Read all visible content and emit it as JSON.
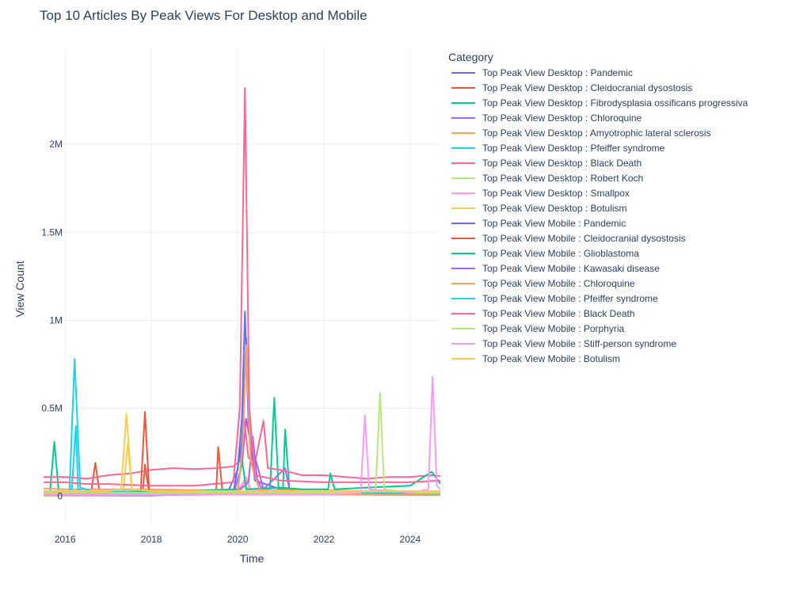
{
  "chart_data": {
    "type": "line",
    "title": "Top 10 Articles By Peak Views For Desktop and Mobile",
    "xlabel": "Time",
    "ylabel": "View Count",
    "xlim": [
      2015.5,
      2024.7
    ],
    "ylim": [
      -150000,
      2550000
    ],
    "x_ticks": [
      2016,
      2018,
      2020,
      2022,
      2024
    ],
    "x_tick_labels": [
      "2016",
      "2018",
      "2020",
      "2022",
      "2024"
    ],
    "y_ticks": [
      0,
      500000,
      1000000,
      1500000,
      2000000
    ],
    "y_tick_labels": [
      "0",
      "0.5M",
      "1M",
      "1.5M",
      "2M"
    ],
    "grid": true,
    "legend_title": "Category",
    "legend_position": "right",
    "series": [
      {
        "name": "Top Peak View Desktop : Pandemic",
        "color": "#636efa",
        "points": [
          [
            2015.5,
            15000
          ],
          [
            2017,
            20000
          ],
          [
            2019,
            18000
          ],
          [
            2019.8,
            40000
          ],
          [
            2020.0,
            150000
          ],
          [
            2020.1,
            450000
          ],
          [
            2020.17,
            1050000
          ],
          [
            2020.25,
            420000
          ],
          [
            2020.4,
            90000
          ],
          [
            2021,
            40000
          ],
          [
            2022,
            20000
          ],
          [
            2023,
            15000
          ],
          [
            2024.7,
            12000
          ]
        ]
      },
      {
        "name": "Top Peak View Desktop : Cleidocranial dysostosis",
        "color": "#EF553B",
        "points": [
          [
            2015.5,
            10000
          ],
          [
            2016.6,
            15000
          ],
          [
            2016.7,
            190000
          ],
          [
            2016.8,
            20000
          ],
          [
            2017.8,
            15000
          ],
          [
            2017.85,
            180000
          ],
          [
            2017.95,
            15000
          ],
          [
            2019.5,
            12000
          ],
          [
            2019.55,
            280000
          ],
          [
            2019.65,
            20000
          ],
          [
            2021,
            10000
          ],
          [
            2023,
            10000
          ],
          [
            2024.7,
            8000
          ]
        ]
      },
      {
        "name": "Top Peak View Desktop : Fibrodysplasia ossificans progressiva",
        "color": "#00cc96",
        "points": [
          [
            2015.5,
            20000
          ],
          [
            2015.65,
            30000
          ],
          [
            2015.75,
            310000
          ],
          [
            2015.85,
            30000
          ],
          [
            2016.5,
            20000
          ],
          [
            2018,
            15000
          ],
          [
            2020,
            20000
          ],
          [
            2020.75,
            30000
          ],
          [
            2020.85,
            560000
          ],
          [
            2020.95,
            40000
          ],
          [
            2021.05,
            30000
          ],
          [
            2021.1,
            380000
          ],
          [
            2021.2,
            40000
          ],
          [
            2022,
            30000
          ],
          [
            2023,
            25000
          ],
          [
            2024.7,
            20000
          ]
        ]
      },
      {
        "name": "Top Peak View Desktop : Chloroquine",
        "color": "#ab63fa",
        "points": [
          [
            2015.5,
            8000
          ],
          [
            2019.9,
            10000
          ],
          [
            2020.1,
            180000
          ],
          [
            2020.2,
            440000
          ],
          [
            2020.3,
            300000
          ],
          [
            2020.45,
            180000
          ],
          [
            2020.6,
            40000
          ],
          [
            2021.1,
            160000
          ],
          [
            2021.2,
            40000
          ],
          [
            2022,
            15000
          ],
          [
            2024.7,
            10000
          ]
        ]
      },
      {
        "name": "Top Peak View Desktop : Amyotrophic lateral sclerosis",
        "color": "#FFA15A",
        "points": [
          [
            2015.5,
            45000
          ],
          [
            2016,
            40000
          ],
          [
            2017,
            40000
          ],
          [
            2018,
            40000
          ],
          [
            2019,
            35000
          ],
          [
            2020,
            40000
          ],
          [
            2020.2,
            90000
          ],
          [
            2020.3,
            40000
          ],
          [
            2021,
            35000
          ],
          [
            2022,
            35000
          ],
          [
            2023,
            30000
          ],
          [
            2024,
            30000
          ],
          [
            2024.7,
            30000
          ]
        ]
      },
      {
        "name": "Top Peak View Desktop : Pfeiffer syndrome",
        "color": "#19d3f3",
        "points": [
          [
            2015.5,
            10000
          ],
          [
            2016.15,
            20000
          ],
          [
            2016.25,
            400000
          ],
          [
            2016.3,
            40000
          ],
          [
            2016.5,
            15000
          ],
          [
            2018,
            10000
          ],
          [
            2020,
            10000
          ],
          [
            2022,
            10000
          ],
          [
            2024.7,
            10000
          ]
        ]
      },
      {
        "name": "Top Peak View Desktop : Black Death",
        "color": "#FF6692",
        "points": [
          [
            2015.5,
            110000
          ],
          [
            2016,
            110000
          ],
          [
            2016.5,
            100000
          ],
          [
            2017,
            120000
          ],
          [
            2017.5,
            130000
          ],
          [
            2018,
            150000
          ],
          [
            2018.5,
            160000
          ],
          [
            2019,
            155000
          ],
          [
            2019.5,
            160000
          ],
          [
            2019.9,
            170000
          ],
          [
            2020.05,
            200000
          ],
          [
            2020.15,
            440000
          ],
          [
            2020.25,
            220000
          ],
          [
            2020.4,
            190000
          ],
          [
            2020.6,
            430000
          ],
          [
            2020.7,
            160000
          ],
          [
            2021,
            150000
          ],
          [
            2021.5,
            120000
          ],
          [
            2022,
            120000
          ],
          [
            2022.5,
            110000
          ],
          [
            2023,
            100000
          ],
          [
            2023.5,
            110000
          ],
          [
            2024,
            110000
          ],
          [
            2024.5,
            120000
          ],
          [
            2024.7,
            115000
          ]
        ]
      },
      {
        "name": "Top Peak View Desktop : Robert Koch",
        "color": "#B6E880",
        "points": [
          [
            2015.5,
            20000
          ],
          [
            2016,
            25000
          ],
          [
            2017,
            20000
          ],
          [
            2018,
            20000
          ],
          [
            2019,
            20000
          ],
          [
            2020,
            20000
          ],
          [
            2020.2,
            60000
          ],
          [
            2020.3,
            20000
          ],
          [
            2022,
            20000
          ],
          [
            2023,
            20000
          ],
          [
            2024.7,
            20000
          ]
        ]
      },
      {
        "name": "Top Peak View Desktop : Smallpox",
        "color": "#FF97FF",
        "points": [
          [
            2015.5,
            30000
          ],
          [
            2016,
            30000
          ],
          [
            2017,
            30000
          ],
          [
            2018,
            25000
          ],
          [
            2019,
            25000
          ],
          [
            2020,
            30000
          ],
          [
            2020.2,
            110000
          ],
          [
            2020.3,
            40000
          ],
          [
            2021,
            30000
          ],
          [
            2022,
            25000
          ],
          [
            2023,
            25000
          ],
          [
            2024,
            25000
          ],
          [
            2024.7,
            25000
          ]
        ]
      },
      {
        "name": "Top Peak View Desktop : Botulism",
        "color": "#FECB52",
        "points": [
          [
            2015.5,
            20000
          ],
          [
            2016,
            20000
          ],
          [
            2017,
            20000
          ],
          [
            2017.35,
            30000
          ],
          [
            2017.45,
            300000
          ],
          [
            2017.55,
            30000
          ],
          [
            2018,
            20000
          ],
          [
            2019,
            20000
          ],
          [
            2020,
            25000
          ],
          [
            2021,
            20000
          ],
          [
            2022,
            20000
          ],
          [
            2024.7,
            15000
          ]
        ]
      },
      {
        "name": "Top Peak View Mobile : Pandemic",
        "color": "#636efa",
        "points": [
          [
            2015.5,
            5000
          ],
          [
            2018,
            5000
          ],
          [
            2019.9,
            20000
          ],
          [
            2020.1,
            300000
          ],
          [
            2020.2,
            900000
          ],
          [
            2020.3,
            200000
          ],
          [
            2020.5,
            40000
          ],
          [
            2021,
            20000
          ],
          [
            2022,
            10000
          ],
          [
            2024.7,
            8000
          ]
        ]
      },
      {
        "name": "Top Peak View Mobile : Cleidocranial dysostosis",
        "color": "#EF553B",
        "points": [
          [
            2015.5,
            10000
          ],
          [
            2017.75,
            15000
          ],
          [
            2017.85,
            480000
          ],
          [
            2017.95,
            30000
          ],
          [
            2018.5,
            15000
          ],
          [
            2020,
            10000
          ],
          [
            2022,
            10000
          ],
          [
            2024.7,
            10000
          ]
        ]
      },
      {
        "name": "Top Peak View Mobile : Glioblastoma",
        "color": "#00cc96",
        "points": [
          [
            2015.5,
            30000
          ],
          [
            2016,
            30000
          ],
          [
            2017,
            25000
          ],
          [
            2018,
            30000
          ],
          [
            2019,
            30000
          ],
          [
            2020,
            40000
          ],
          [
            2020.1,
            210000
          ],
          [
            2020.2,
            40000
          ],
          [
            2021,
            50000
          ],
          [
            2021.5,
            40000
          ],
          [
            2022.1,
            40000
          ],
          [
            2022.15,
            130000
          ],
          [
            2022.25,
            40000
          ],
          [
            2023,
            50000
          ],
          [
            2024,
            60000
          ],
          [
            2024.5,
            140000
          ],
          [
            2024.7,
            70000
          ]
        ]
      },
      {
        "name": "Top Peak View Mobile : Kawasaki disease",
        "color": "#ab63fa",
        "points": [
          [
            2015.5,
            5000
          ],
          [
            2019.9,
            10000
          ],
          [
            2020.25,
            80000
          ],
          [
            2020.35,
            340000
          ],
          [
            2020.45,
            100000
          ],
          [
            2020.6,
            20000
          ],
          [
            2022,
            10000
          ],
          [
            2024.7,
            8000
          ]
        ]
      },
      {
        "name": "Top Peak View Mobile : Chloroquine",
        "color": "#FFA15A",
        "points": [
          [
            2015.5,
            5000
          ],
          [
            2020,
            10000
          ],
          [
            2020.12,
            300000
          ],
          [
            2020.2,
            860000
          ],
          [
            2020.3,
            200000
          ],
          [
            2020.5,
            40000
          ],
          [
            2021,
            20000
          ],
          [
            2022,
            10000
          ],
          [
            2024.7,
            8000
          ]
        ]
      },
      {
        "name": "Top Peak View Mobile : Pfeiffer syndrome",
        "color": "#19d3f3",
        "points": [
          [
            2015.5,
            20000
          ],
          [
            2016.1,
            30000
          ],
          [
            2016.22,
            780000
          ],
          [
            2016.35,
            50000
          ],
          [
            2016.6,
            30000
          ],
          [
            2018,
            20000
          ],
          [
            2020,
            20000
          ],
          [
            2022,
            20000
          ],
          [
            2024.7,
            15000
          ]
        ]
      },
      {
        "name": "Top Peak View Mobile : Black Death",
        "color": "#FF6692",
        "points": [
          [
            2015.5,
            80000
          ],
          [
            2016,
            80000
          ],
          [
            2016.5,
            70000
          ],
          [
            2017,
            70000
          ],
          [
            2018,
            60000
          ],
          [
            2019,
            60000
          ],
          [
            2019.9,
            80000
          ],
          [
            2020.05,
            500000
          ],
          [
            2020.17,
            2320000
          ],
          [
            2020.27,
            500000
          ],
          [
            2020.4,
            120000
          ],
          [
            2021,
            90000
          ],
          [
            2022,
            80000
          ],
          [
            2023,
            80000
          ],
          [
            2024,
            80000
          ],
          [
            2024.7,
            90000
          ]
        ]
      },
      {
        "name": "Top Peak View Mobile : Porphyria",
        "color": "#B6E880",
        "points": [
          [
            2015.5,
            20000
          ],
          [
            2018,
            20000
          ],
          [
            2020,
            20000
          ],
          [
            2022,
            20000
          ],
          [
            2023.2,
            30000
          ],
          [
            2023.3,
            590000
          ],
          [
            2023.4,
            40000
          ],
          [
            2024,
            20000
          ],
          [
            2024.7,
            20000
          ]
        ]
      },
      {
        "name": "Top Peak View Mobile : Stiff-person syndrome",
        "color": "#FF97FF",
        "points": [
          [
            2015.5,
            10000
          ],
          [
            2018,
            10000
          ],
          [
            2020,
            10000
          ],
          [
            2022,
            10000
          ],
          [
            2022.85,
            20000
          ],
          [
            2022.95,
            460000
          ],
          [
            2023.05,
            40000
          ],
          [
            2024,
            20000
          ],
          [
            2024.42,
            40000
          ],
          [
            2024.52,
            680000
          ],
          [
            2024.62,
            60000
          ],
          [
            2024.7,
            40000
          ]
        ]
      },
      {
        "name": "Top Peak View Mobile : Botulism",
        "color": "#FECB52",
        "points": [
          [
            2015.5,
            30000
          ],
          [
            2016,
            30000
          ],
          [
            2017,
            30000
          ],
          [
            2017.3,
            40000
          ],
          [
            2017.42,
            470000
          ],
          [
            2017.55,
            40000
          ],
          [
            2018,
            30000
          ],
          [
            2020,
            30000
          ],
          [
            2022,
            30000
          ],
          [
            2024.7,
            30000
          ]
        ]
      }
    ]
  }
}
